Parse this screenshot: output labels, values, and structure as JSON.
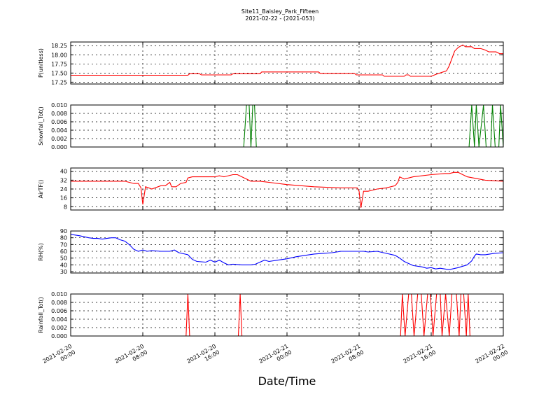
{
  "figure": {
    "title": "Site11_Baisley_Park_Fifteen",
    "subtitle": "2021-02-22 - (2021-053)",
    "xlabel": "Date/Time"
  },
  "chart_data": {
    "type": "line",
    "x_ticks": [
      {
        "t": 0,
        "line1": "2021-02-20",
        "line2": "00:00"
      },
      {
        "t": 8,
        "line1": "2021-02-20",
        "line2": "08:00"
      },
      {
        "t": 16,
        "line1": "2021-02-20",
        "line2": "16:00"
      },
      {
        "t": 24,
        "line1": "2021-02-21",
        "line2": "00:00"
      },
      {
        "t": 32,
        "line1": "2021-02-21",
        "line2": "08:00"
      },
      {
        "t": 40,
        "line1": "2021-02-21",
        "line2": "16:00"
      },
      {
        "t": 48,
        "line1": "2021-02-22",
        "line2": "00:00"
      }
    ],
    "x_unit": "hours since 2021-02-20 00:00",
    "xlim": [
      0,
      48
    ],
    "grid": true,
    "panels": [
      {
        "id": "pressure",
        "ylabel": "P(unitless)",
        "ylim": [
          17.2,
          18.35
        ],
        "yticks": [
          "17.25",
          "17.50",
          "17.75",
          "18.00",
          "18.25"
        ],
        "ytick_values": [
          17.25,
          17.5,
          17.75,
          18.0,
          18.25
        ],
        "color": "#ff0000",
        "points": [
          [
            0,
            17.44
          ],
          [
            13,
            17.44
          ],
          [
            13.2,
            17.48
          ],
          [
            14.3,
            17.48
          ],
          [
            14.5,
            17.45
          ],
          [
            17.8,
            17.45
          ],
          [
            18,
            17.48
          ],
          [
            21,
            17.48
          ],
          [
            21.2,
            17.53
          ],
          [
            27.5,
            17.53
          ],
          [
            27.7,
            17.49
          ],
          [
            31.5,
            17.49
          ],
          [
            31.7,
            17.45
          ],
          [
            34.6,
            17.45
          ],
          [
            34.8,
            17.41
          ],
          [
            37,
            17.41
          ],
          [
            37.2,
            17.45
          ],
          [
            37.5,
            17.45
          ],
          [
            37.7,
            17.41
          ],
          [
            40,
            17.41
          ],
          [
            40.5,
            17.46
          ],
          [
            41.2,
            17.52
          ],
          [
            41.7,
            17.56
          ],
          [
            42,
            17.7
          ],
          [
            42.3,
            17.9
          ],
          [
            42.6,
            18.1
          ],
          [
            43,
            18.2
          ],
          [
            43.5,
            18.27
          ],
          [
            43.8,
            18.22
          ],
          [
            44.5,
            18.22
          ],
          [
            44.8,
            18.17
          ],
          [
            45.5,
            18.17
          ],
          [
            46,
            18.13
          ],
          [
            46.4,
            18.08
          ],
          [
            47.2,
            18.08
          ],
          [
            47.6,
            18.03
          ],
          [
            48,
            18.03
          ]
        ]
      },
      {
        "id": "snowfall",
        "ylabel": "Snowfall_Tot()",
        "ylim": [
          0,
          0.01
        ],
        "yticks": [
          "0.000",
          "0.002",
          "0.004",
          "0.006",
          "0.008",
          "0.010"
        ],
        "ytick_values": [
          0,
          0.002,
          0.004,
          0.006,
          0.008,
          0.01
        ],
        "color": "#008000",
        "points": [
          [
            0,
            0
          ],
          [
            19.2,
            0
          ],
          [
            19.5,
            0.01
          ],
          [
            19.8,
            0.01
          ],
          [
            20,
            0
          ],
          [
            20.2,
            0.01
          ],
          [
            20.4,
            0.01
          ],
          [
            20.6,
            0
          ],
          [
            44.2,
            0
          ],
          [
            44.5,
            0.01
          ],
          [
            44.8,
            0
          ],
          [
            45,
            0.01
          ],
          [
            45.3,
            0
          ],
          [
            45.8,
            0.01
          ],
          [
            46.1,
            0
          ],
          [
            46.6,
            0
          ],
          [
            46.8,
            0.01
          ],
          [
            47.1,
            0
          ],
          [
            47.5,
            0
          ],
          [
            47.7,
            0.01
          ],
          [
            48,
            0
          ]
        ]
      },
      {
        "id": "airtemp",
        "ylabel": "AirTF()",
        "ylim": [
          5,
          43
        ],
        "yticks": [
          "8",
          "16",
          "24",
          "32",
          "40"
        ],
        "ytick_values": [
          8,
          16,
          24,
          32,
          40
        ],
        "color": "#ff0000",
        "points": [
          [
            0,
            31
          ],
          [
            1,
            31
          ],
          [
            3,
            31
          ],
          [
            5,
            31
          ],
          [
            6,
            31
          ],
          [
            7,
            29
          ],
          [
            7.5,
            29
          ],
          [
            7.8,
            25
          ],
          [
            8,
            10
          ],
          [
            8.3,
            26
          ],
          [
            9,
            24
          ],
          [
            10,
            27
          ],
          [
            10.5,
            27
          ],
          [
            11,
            30
          ],
          [
            11.2,
            26
          ],
          [
            11.7,
            26
          ],
          [
            12.2,
            29
          ],
          [
            12.8,
            30
          ],
          [
            13,
            34
          ],
          [
            13.5,
            35
          ],
          [
            15,
            35
          ],
          [
            16,
            35
          ],
          [
            16.5,
            36
          ],
          [
            17,
            35
          ],
          [
            18,
            37
          ],
          [
            18.5,
            37
          ],
          [
            19.5,
            33
          ],
          [
            20,
            31
          ],
          [
            21,
            31
          ],
          [
            22,
            30
          ],
          [
            24,
            28
          ],
          [
            27,
            26
          ],
          [
            30,
            25
          ],
          [
            31.8,
            25
          ],
          [
            32,
            22
          ],
          [
            32.2,
            7
          ],
          [
            32.5,
            22
          ],
          [
            33,
            22
          ],
          [
            33.5,
            23
          ],
          [
            34,
            24
          ],
          [
            35,
            25
          ],
          [
            36,
            27
          ],
          [
            36.3,
            30
          ],
          [
            36.5,
            35
          ],
          [
            37,
            33
          ],
          [
            38,
            35
          ],
          [
            40,
            37
          ],
          [
            41.5,
            38
          ],
          [
            42,
            38
          ],
          [
            42.5,
            39
          ],
          [
            43,
            39
          ],
          [
            43.5,
            37
          ],
          [
            44,
            35
          ],
          [
            46,
            32
          ],
          [
            48,
            31
          ]
        ]
      },
      {
        "id": "rh",
        "ylabel": "RH(%)",
        "ylim": [
          28,
          90
        ],
        "yticks": [
          "30",
          "40",
          "50",
          "60",
          "70",
          "80",
          "90"
        ],
        "ytick_values": [
          30,
          40,
          50,
          60,
          70,
          80,
          90
        ],
        "color": "#0000ff",
        "points": [
          [
            0,
            85
          ],
          [
            1,
            83
          ],
          [
            2,
            80
          ],
          [
            2.5,
            79
          ],
          [
            3,
            79
          ],
          [
            3.5,
            78
          ],
          [
            4,
            79
          ],
          [
            4.5,
            80
          ],
          [
            5,
            80
          ],
          [
            5.5,
            77
          ],
          [
            6,
            75
          ],
          [
            6.5,
            70
          ],
          [
            7,
            63
          ],
          [
            7.5,
            60
          ],
          [
            8,
            62
          ],
          [
            8.5,
            60
          ],
          [
            9,
            61
          ],
          [
            10,
            60
          ],
          [
            11,
            60
          ],
          [
            11.5,
            62
          ],
          [
            12,
            58
          ],
          [
            13,
            55
          ],
          [
            13.5,
            48
          ],
          [
            14,
            45
          ],
          [
            15,
            44
          ],
          [
            15.5,
            47
          ],
          [
            16,
            44
          ],
          [
            16.5,
            47
          ],
          [
            17,
            43
          ],
          [
            17.5,
            40
          ],
          [
            18,
            41
          ],
          [
            19,
            40
          ],
          [
            20,
            40
          ],
          [
            20.5,
            41
          ],
          [
            21,
            44
          ],
          [
            21.5,
            47
          ],
          [
            22,
            45
          ],
          [
            23,
            47
          ],
          [
            24,
            49
          ],
          [
            25,
            52
          ],
          [
            26,
            54
          ],
          [
            27,
            56
          ],
          [
            28,
            57
          ],
          [
            29,
            58
          ],
          [
            30,
            60
          ],
          [
            32,
            60
          ],
          [
            32.5,
            60
          ],
          [
            33,
            59
          ],
          [
            34,
            60
          ],
          [
            35,
            57
          ],
          [
            36,
            54
          ],
          [
            36.5,
            50
          ],
          [
            37,
            45
          ],
          [
            37.5,
            42
          ],
          [
            38,
            39
          ],
          [
            39,
            37
          ],
          [
            39.5,
            35
          ],
          [
            40,
            36
          ],
          [
            40.5,
            34
          ],
          [
            41,
            35
          ],
          [
            42,
            33
          ],
          [
            43,
            36
          ],
          [
            43.5,
            38
          ],
          [
            44,
            40
          ],
          [
            44.5,
            46
          ],
          [
            44.8,
            53
          ],
          [
            45,
            56
          ],
          [
            45.5,
            55
          ],
          [
            46,
            55
          ],
          [
            47,
            57
          ],
          [
            48,
            58
          ]
        ]
      },
      {
        "id": "rainfall",
        "ylabel": "Rainfall_Tot()",
        "ylim": [
          0,
          0.01
        ],
        "yticks": [
          "0.000",
          "0.002",
          "0.004",
          "0.006",
          "0.008",
          "0.010"
        ],
        "ytick_values": [
          0,
          0.002,
          0.004,
          0.006,
          0.008,
          0.01
        ],
        "color": "#ff0000",
        "points": [
          [
            0,
            0
          ],
          [
            12.8,
            0
          ],
          [
            13,
            0.01
          ],
          [
            13.2,
            0
          ],
          [
            18.6,
            0
          ],
          [
            18.8,
            0.01
          ],
          [
            19,
            0
          ],
          [
            36.6,
            0
          ],
          [
            36.8,
            0.01
          ],
          [
            37.1,
            0
          ],
          [
            37.5,
            0.01
          ],
          [
            37.8,
            0.01
          ],
          [
            38.1,
            0
          ],
          [
            38.5,
            0.01
          ],
          [
            38.9,
            0.01
          ],
          [
            39.2,
            0
          ],
          [
            39.6,
            0.01
          ],
          [
            39.9,
            0.01
          ],
          [
            40.2,
            0
          ],
          [
            40.6,
            0.01
          ],
          [
            41,
            0.01
          ],
          [
            41.2,
            0
          ],
          [
            41.6,
            0.01
          ],
          [
            42,
            0
          ],
          [
            42.3,
            0.01
          ],
          [
            42.8,
            0.01
          ],
          [
            43.1,
            0
          ],
          [
            43.3,
            0.01
          ],
          [
            43.6,
            0.01
          ],
          [
            43.9,
            0
          ],
          [
            44.1,
            0.01
          ],
          [
            44.3,
            0
          ],
          [
            48,
            0
          ]
        ]
      }
    ]
  }
}
